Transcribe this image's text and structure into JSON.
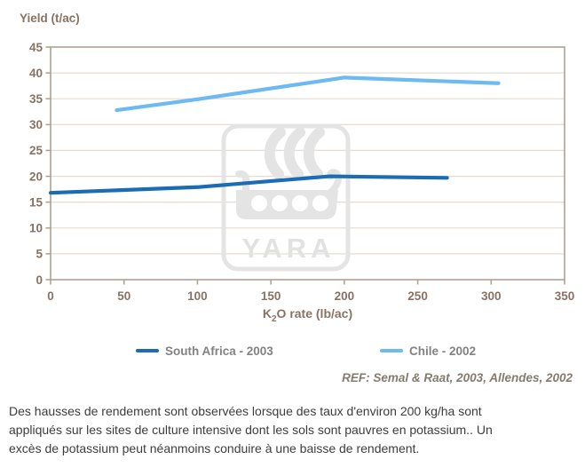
{
  "chart_data": {
    "type": "line",
    "ylabel": "Yield (t/ac)",
    "xlabel_parts": {
      "base1": "K",
      "sub": "2",
      "base2": "O rate (lb/ac)"
    },
    "xlim": [
      0,
      350
    ],
    "ylim": [
      0,
      45
    ],
    "xticks": [
      0,
      50,
      100,
      150,
      200,
      250,
      300,
      350
    ],
    "yticks": [
      0,
      5,
      10,
      15,
      20,
      25,
      30,
      35,
      40,
      45
    ],
    "grid": "horizontal",
    "legend_position": "bottom",
    "series": [
      {
        "name": "South Africa - 2003",
        "color": "#1b6cb5",
        "x": [
          0,
          100,
          190,
          270
        ],
        "y": [
          16.8,
          17.9,
          20.0,
          19.7
        ]
      },
      {
        "name": "Chile - 2002",
        "color": "#6db9f2",
        "x": [
          45,
          100,
          200,
          305
        ],
        "y": [
          32.8,
          34.9,
          39.1,
          38.0
        ]
      }
    ],
    "reference": "REF: Semal & Raat, 2003, Allendes, 2002"
  },
  "watermark": {
    "label": "YARA"
  },
  "caption": {
    "lines": [
      "Des hausses de rendement sont observées lorsque des taux d'environ 200 kg/ha sont",
      "appliqués sur les sites de culture intensive dont les sols sont pauvres en potassium.. Un",
      "excès de potassium peut néanmoins conduire à une baisse de rendement."
    ]
  }
}
